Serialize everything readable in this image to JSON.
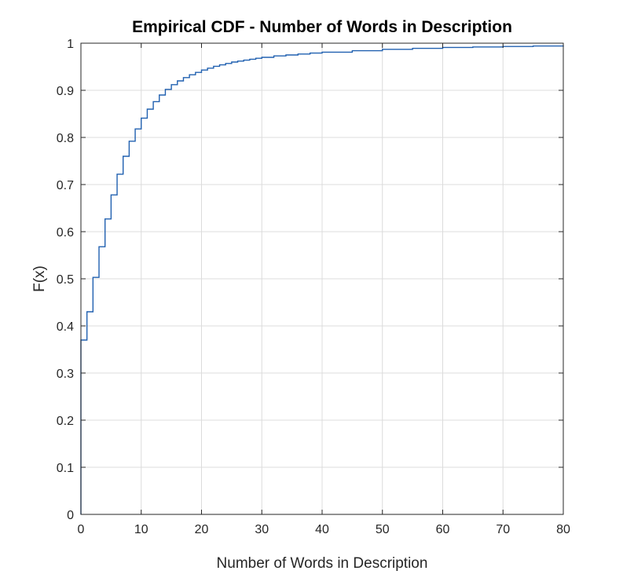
{
  "chart_data": {
    "type": "line",
    "step": true,
    "title": "Empirical CDF - Number of Words in Description",
    "xlabel": "Number of Words in Description",
    "ylabel": "F(x)",
    "xlim": [
      0,
      80
    ],
    "ylim": [
      0,
      1
    ],
    "xticks": [
      "0",
      "10",
      "20",
      "30",
      "40",
      "50",
      "60",
      "70",
      "80"
    ],
    "yticks": [
      "0",
      "0.1",
      "0.2",
      "0.3",
      "0.4",
      "0.5",
      "0.6",
      "0.7",
      "0.8",
      "0.9",
      "1"
    ],
    "grid": true,
    "line_color": "#2060b0",
    "series": [
      {
        "x": [
          0,
          1,
          2,
          3,
          4,
          5,
          6,
          7,
          8,
          9,
          10,
          11,
          12,
          13,
          14,
          15,
          16,
          17,
          18,
          19,
          20,
          21,
          22,
          23,
          24,
          25,
          26,
          27,
          28,
          29,
          30,
          32,
          34,
          36,
          38,
          40,
          45,
          50,
          55,
          60,
          65,
          70,
          75,
          80
        ],
        "y": [
          0.37,
          0.43,
          0.503,
          0.568,
          0.627,
          0.678,
          0.722,
          0.76,
          0.792,
          0.818,
          0.841,
          0.86,
          0.876,
          0.89,
          0.902,
          0.912,
          0.92,
          0.927,
          0.933,
          0.938,
          0.943,
          0.947,
          0.951,
          0.954,
          0.957,
          0.96,
          0.962,
          0.964,
          0.966,
          0.968,
          0.97,
          0.973,
          0.975,
          0.977,
          0.979,
          0.981,
          0.984,
          0.987,
          0.989,
          0.991,
          0.992,
          0.993,
          0.994,
          0.995
        ]
      }
    ]
  }
}
